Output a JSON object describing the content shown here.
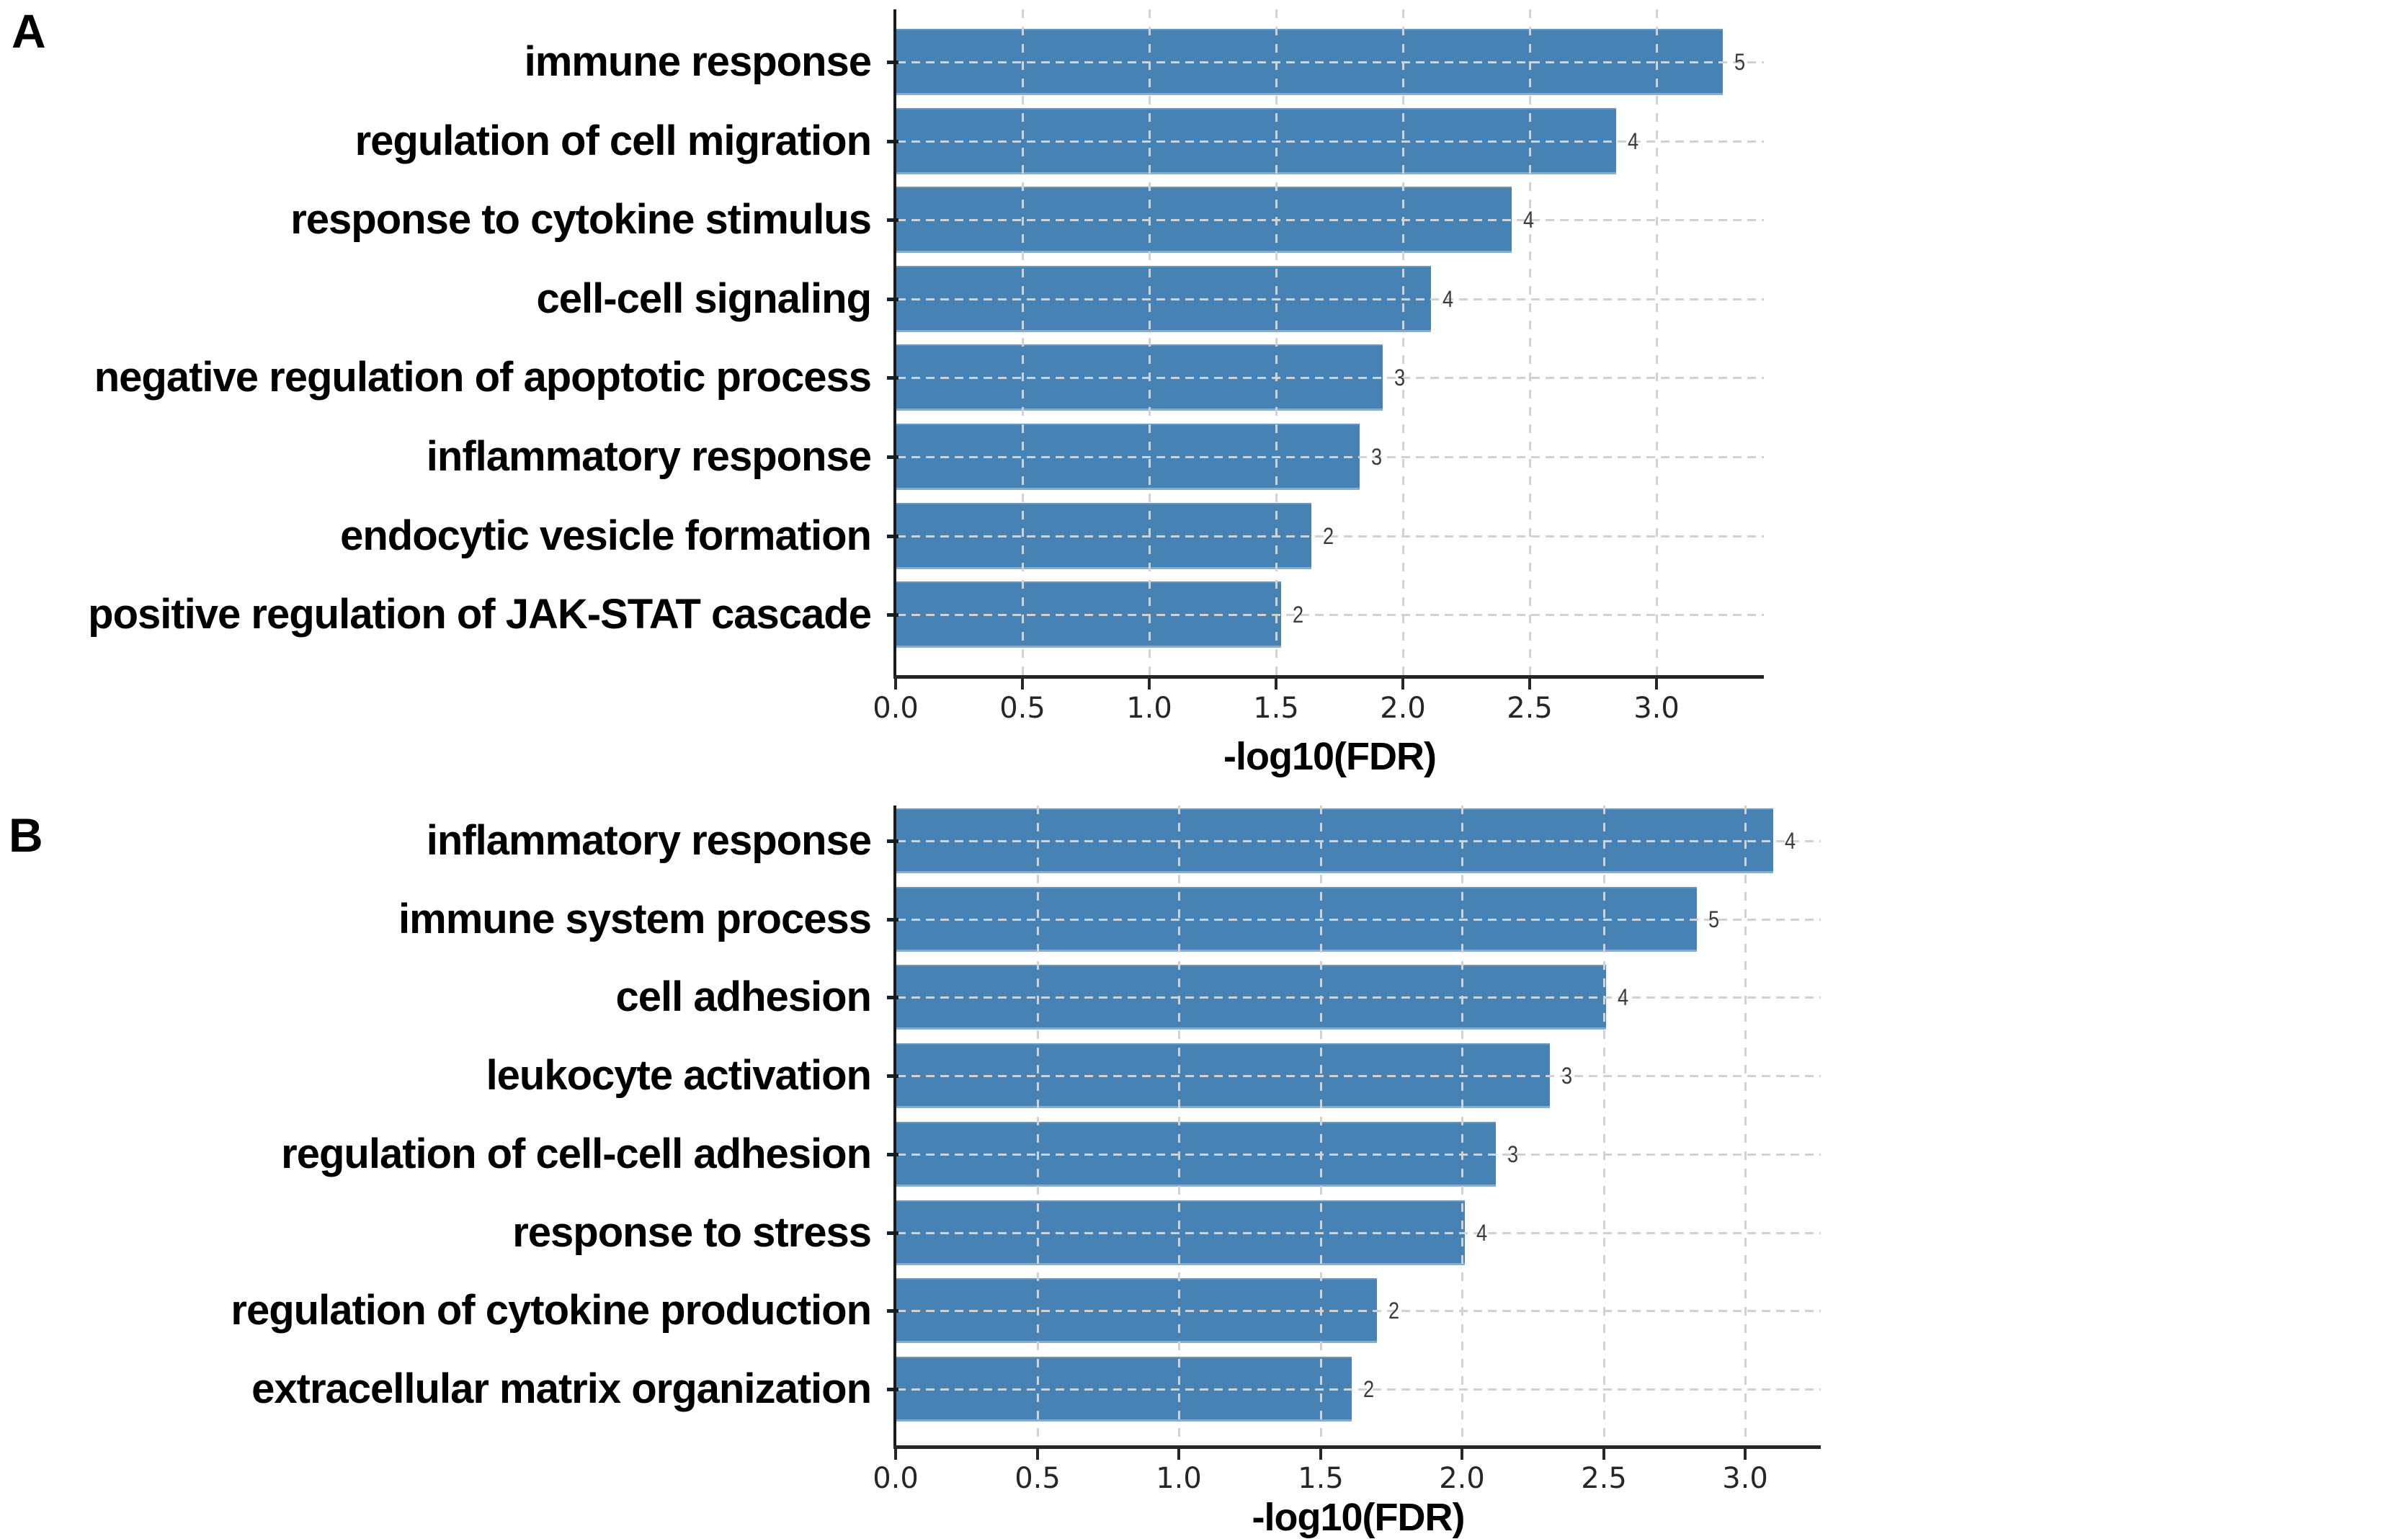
{
  "figure": {
    "background": "#ffffff"
  },
  "panels": [
    {
      "letter": "A",
      "xlabel": "-log10(FDR)"
    },
    {
      "letter": "B",
      "xlabel": "-log10(FDR)"
    }
  ],
  "chart_data": [
    {
      "type": "bar",
      "orientation": "horizontal",
      "panel": "A",
      "title": "",
      "xlabel": "-log10(FDR)",
      "ylabel": "",
      "categories": [
        "immune response",
        "regulation of cell migration",
        "response to cytokine stimulus",
        "cell-cell signaling",
        "negative regulation of apoptotic process",
        "inflammatory response",
        "endocytic vesicle formation",
        "positive regulation of JAK-STAT cascade"
      ],
      "values": [
        3.26,
        2.84,
        2.43,
        2.11,
        1.92,
        1.83,
        1.64,
        1.52
      ],
      "bar_end_labels": [
        "5",
        "4",
        "4",
        "4",
        "3",
        "3",
        "2",
        "2"
      ],
      "xticks": [
        0.0,
        0.5,
        1.0,
        1.5,
        2.0,
        2.5,
        3.0
      ],
      "xtick_labels": [
        "0.0",
        "0.5",
        "1.0",
        "1.5",
        "2.0",
        "2.5",
        "3.0"
      ],
      "xlim": [
        0,
        3.42
      ],
      "grid": "vertical dashed gridlines every 0.5; horizontal dotted line through each bar center",
      "legend": "none",
      "bar_color": "#4682b4"
    },
    {
      "type": "bar",
      "orientation": "horizontal",
      "panel": "B",
      "title": "",
      "xlabel": "-log10(FDR)",
      "ylabel": "",
      "categories": [
        "inflammatory response",
        "immune system process",
        "cell adhesion",
        "leukocyte activation",
        "regulation of cell-cell adhesion",
        "response to stress",
        "regulation of cytokine production",
        "extracellular matrix organization"
      ],
      "values": [
        3.1,
        2.83,
        2.51,
        2.31,
        2.12,
        2.01,
        1.7,
        1.61
      ],
      "bar_end_labels": [
        "4",
        "5",
        "4",
        "3",
        "3",
        "4",
        "2",
        "2"
      ],
      "xticks": [
        0.0,
        0.5,
        1.0,
        1.5,
        2.0,
        2.5,
        3.0
      ],
      "xtick_labels": [
        "0.0",
        "0.5",
        "1.0",
        "1.5",
        "2.0",
        "2.5",
        "3.0"
      ],
      "xlim": [
        0,
        3.27
      ],
      "grid": "vertical dashed gridlines every 0.5; horizontal dotted line through each bar center",
      "legend": "none",
      "bar_color": "#4682b4"
    }
  ],
  "colors": {
    "bar": "#4682b4",
    "axis": "#1a1a1a",
    "grid": "#d2d2d2",
    "tick_label": "#262626",
    "value_label": "#3b3b3b",
    "category_label": "#000000"
  }
}
